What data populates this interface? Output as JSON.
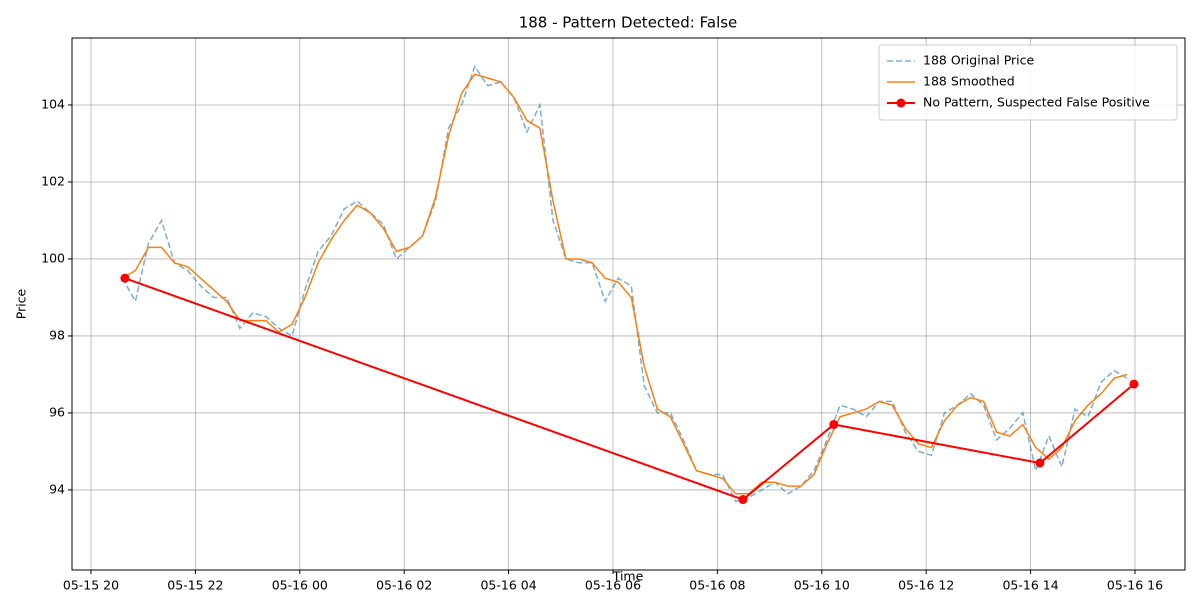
{
  "chart_data": {
    "type": "line",
    "title": "188 - Pattern Detected: False",
    "xlabel": "Time",
    "ylabel": "Price",
    "xlim": [
      19.636,
      40.958
    ],
    "ylim": [
      91.92,
      105.74
    ],
    "xticks": [
      {
        "value": 20,
        "label": "05-15 20"
      },
      {
        "value": 22,
        "label": "05-15 22"
      },
      {
        "value": 24,
        "label": "05-16 00"
      },
      {
        "value": 26,
        "label": "05-16 02"
      },
      {
        "value": 28,
        "label": "05-16 04"
      },
      {
        "value": 30,
        "label": "05-16 06"
      },
      {
        "value": 32,
        "label": "05-16 08"
      },
      {
        "value": 34,
        "label": "05-16 10"
      },
      {
        "value": 36,
        "label": "05-16 12"
      },
      {
        "value": 38,
        "label": "05-16 14"
      },
      {
        "value": 40,
        "label": "05-16 16"
      }
    ],
    "yticks": [
      94,
      96,
      98,
      100,
      102,
      104
    ],
    "grid": true,
    "legend": "upper right",
    "series": [
      {
        "name": "188 Original Price",
        "color": "#1f77b4",
        "opacity": 0.6,
        "linestyle": "dashed",
        "marker": "none",
        "x": [
          20.6,
          20.85,
          21.1,
          21.35,
          21.6,
          21.85,
          22.1,
          22.35,
          22.6,
          22.85,
          23.1,
          23.35,
          23.6,
          23.85,
          24.1,
          24.35,
          24.6,
          24.85,
          25.1,
          25.35,
          25.6,
          25.85,
          26.1,
          26.35,
          26.6,
          26.85,
          27.1,
          27.35,
          27.6,
          27.85,
          28.1,
          28.35,
          28.6,
          28.85,
          29.1,
          29.35,
          29.6,
          29.85,
          30.1,
          30.35,
          30.6,
          30.85,
          31.1,
          31.35,
          31.6,
          31.85,
          32.1,
          32.35,
          32.6,
          32.85,
          33.1,
          33.35,
          33.6,
          33.85,
          34.1,
          34.35,
          34.6,
          34.85,
          35.1,
          35.35,
          35.6,
          35.85,
          36.1,
          36.35,
          36.6,
          36.85,
          37.1,
          37.35,
          37.6,
          37.85,
          38.1,
          38.35,
          38.6,
          38.85,
          39.1,
          39.35,
          39.6,
          39.85
        ],
        "values": [
          99.5,
          98.9,
          100.4,
          101.0,
          99.9,
          99.7,
          99.3,
          99.0,
          99.0,
          98.2,
          98.6,
          98.5,
          98.2,
          98.0,
          99.2,
          100.2,
          100.6,
          101.3,
          101.5,
          101.2,
          100.9,
          100.0,
          100.3,
          100.6,
          101.5,
          103.4,
          104.0,
          105.0,
          104.5,
          104.6,
          104.2,
          103.3,
          104.0,
          101.0,
          100.0,
          99.9,
          99.9,
          98.9,
          99.5,
          99.3,
          96.7,
          96.0,
          96.0,
          95.3,
          94.5,
          94.4,
          94.4,
          93.7,
          93.8,
          94.0,
          94.2,
          93.9,
          94.1,
          94.5,
          95.3,
          96.2,
          96.1,
          95.9,
          96.3,
          96.3,
          95.5,
          95.0,
          94.9,
          96.0,
          96.2,
          96.5,
          96.2,
          95.3,
          95.6,
          96.0,
          94.5,
          95.4,
          94.6,
          96.1,
          95.9,
          96.8,
          97.1,
          96.9
        ]
      },
      {
        "name": "188 Smoothed",
        "color": "#ff7f0e",
        "opacity": 1,
        "linestyle": "solid",
        "marker": "none",
        "x": [
          20.6,
          20.85,
          21.1,
          21.35,
          21.6,
          21.85,
          22.1,
          22.35,
          22.6,
          22.85,
          23.1,
          23.35,
          23.6,
          23.85,
          24.1,
          24.35,
          24.6,
          24.85,
          25.1,
          25.35,
          25.6,
          25.85,
          26.1,
          26.35,
          26.6,
          26.85,
          27.1,
          27.35,
          27.6,
          27.85,
          28.1,
          28.35,
          28.6,
          28.85,
          29.1,
          29.35,
          29.6,
          29.85,
          30.1,
          30.35,
          30.6,
          30.85,
          31.1,
          31.35,
          31.6,
          31.85,
          32.1,
          32.35,
          32.6,
          32.85,
          33.1,
          33.35,
          33.6,
          33.85,
          34.1,
          34.35,
          34.6,
          34.85,
          35.1,
          35.35,
          35.6,
          35.85,
          36.1,
          36.35,
          36.6,
          36.85,
          37.1,
          37.35,
          37.6,
          37.85,
          38.1,
          38.35,
          38.6,
          38.85,
          39.1,
          39.35,
          39.6,
          39.85
        ],
        "values": [
          99.5,
          99.7,
          100.3,
          100.3,
          99.9,
          99.8,
          99.5,
          99.2,
          98.9,
          98.4,
          98.4,
          98.4,
          98.1,
          98.3,
          99.0,
          99.9,
          100.5,
          101.0,
          101.4,
          101.2,
          100.8,
          100.2,
          100.3,
          100.6,
          101.6,
          103.2,
          104.3,
          104.8,
          104.7,
          104.6,
          104.2,
          103.6,
          103.4,
          101.5,
          100.0,
          100.0,
          99.9,
          99.5,
          99.4,
          99.0,
          97.2,
          96.1,
          95.9,
          95.2,
          94.5,
          94.4,
          94.3,
          93.9,
          93.9,
          94.2,
          94.2,
          94.1,
          94.1,
          94.4,
          95.2,
          95.9,
          96.0,
          96.1,
          96.3,
          96.2,
          95.6,
          95.2,
          95.1,
          95.8,
          96.2,
          96.4,
          96.3,
          95.5,
          95.4,
          95.7,
          95.1,
          94.8,
          95.1,
          95.8,
          96.2,
          96.5,
          96.9,
          97.0
        ]
      },
      {
        "name": "No Pattern, Suspected False Positive",
        "color": "#ff0000",
        "opacity": 1,
        "linestyle": "solid",
        "marker": "circle",
        "x": [
          20.65,
          32.49,
          34.23,
          38.18,
          39.98
        ],
        "values": [
          99.5,
          93.75,
          95.7,
          94.7,
          96.75
        ]
      }
    ]
  }
}
